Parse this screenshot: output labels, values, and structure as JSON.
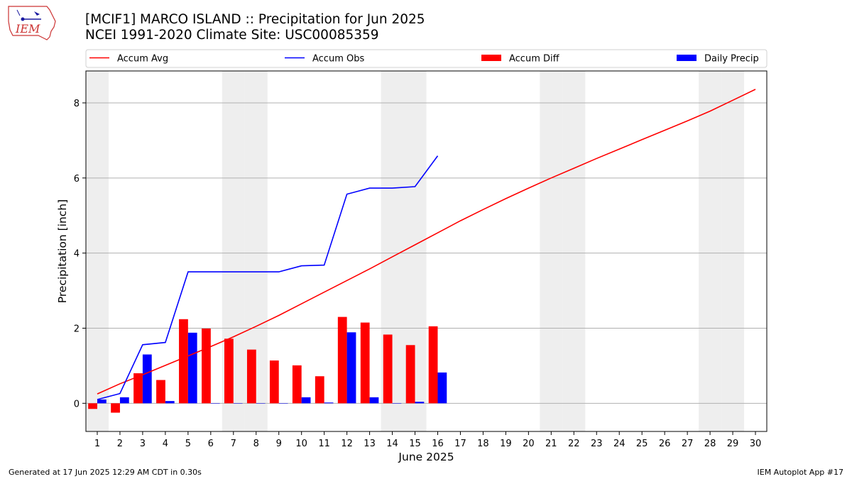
{
  "header": {
    "title_line1": "[MCIF1] MARCO ISLAND :: Precipitation for Jun 2025",
    "title_line2": "NCEI 1991-2020 Climate Site: USC00085359",
    "logo_text": "IEM"
  },
  "footer": {
    "left": "Generated at 17 Jun 2025 12:29 AM CDT in 0.30s",
    "right": "IEM Autoplot App #17"
  },
  "chart_data": {
    "type": "bar",
    "xlabel": "June 2025",
    "ylabel": "Precipitation [inch]",
    "xlim": [
      0.5,
      30.5
    ],
    "ylim": [
      -0.75,
      8.85
    ],
    "yticks": [
      0,
      2,
      4,
      6,
      8
    ],
    "grid": "horizontal",
    "legend_position": "top (above plot, single row)",
    "weekend_shading_days": [
      1,
      7,
      8,
      14,
      15,
      21,
      22,
      28,
      29
    ],
    "weekend_shade_color": "#eeeeee",
    "days": [
      1,
      2,
      3,
      4,
      5,
      6,
      7,
      8,
      9,
      10,
      11,
      12,
      13,
      14,
      15,
      16,
      17,
      18,
      19,
      20,
      21,
      22,
      23,
      24,
      25,
      26,
      27,
      28,
      29,
      30
    ],
    "series": [
      {
        "name": "Accum Avg",
        "kind": "line",
        "color": "#ff0000",
        "values": [
          0.25,
          0.52,
          0.76,
          1.01,
          1.26,
          1.51,
          1.77,
          2.05,
          2.34,
          2.65,
          2.96,
          3.27,
          3.58,
          3.9,
          4.22,
          4.54,
          4.86,
          5.16,
          5.45,
          5.73,
          6.0,
          6.26,
          6.52,
          6.77,
          7.02,
          7.27,
          7.52,
          7.78,
          8.07,
          8.36
        ]
      },
      {
        "name": "Accum Obs",
        "kind": "line",
        "color": "#0000ff",
        "values": [
          0.1,
          0.26,
          1.56,
          1.62,
          3.5,
          3.5,
          3.5,
          3.5,
          3.5,
          3.66,
          3.68,
          5.57,
          5.73,
          5.73,
          5.77,
          6.59
        ]
      },
      {
        "name": "Accum Diff",
        "kind": "bar",
        "color": "#ff0000",
        "values": [
          -0.15,
          -0.25,
          0.8,
          0.62,
          2.24,
          1.99,
          1.72,
          1.43,
          1.14,
          1.01,
          0.72,
          2.3,
          2.15,
          1.83,
          1.55,
          2.05
        ]
      },
      {
        "name": "Daily Precip",
        "kind": "bar",
        "color": "#0000ff",
        "values": [
          0.1,
          0.16,
          1.3,
          0.06,
          1.88,
          0,
          0,
          0,
          0,
          0.16,
          0.02,
          1.89,
          0.16,
          0,
          0.04,
          0.82
        ]
      }
    ]
  }
}
